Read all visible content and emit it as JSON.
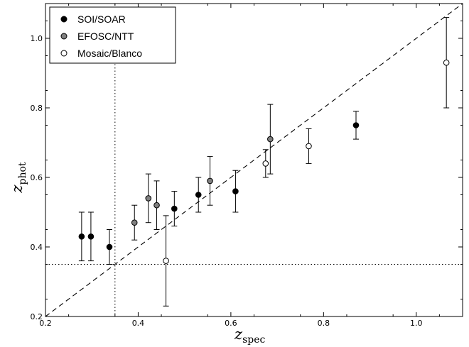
{
  "chart_data": {
    "type": "scatter",
    "title": "",
    "xlabel": {
      "main": "z",
      "sub": "spec"
    },
    "ylabel": {
      "main": "z",
      "sub": "phot"
    },
    "xlim": [
      0.2,
      1.1
    ],
    "ylim": [
      0.2,
      1.1
    ],
    "xticks": [
      {
        "v": 0.2,
        "label": "0.2"
      },
      {
        "v": 0.4,
        "label": "0.4"
      },
      {
        "v": 0.6,
        "label": "0.6"
      },
      {
        "v": 0.8,
        "label": "0.8"
      },
      {
        "v": 1.0,
        "label": "1.0"
      }
    ],
    "yticks": [
      {
        "v": 0.2,
        "label": "0.2"
      },
      {
        "v": 0.4,
        "label": "0.4"
      },
      {
        "v": 0.6,
        "label": "0.6"
      },
      {
        "v": 0.8,
        "label": "0.8"
      },
      {
        "v": 1.0,
        "label": "1.0"
      }
    ],
    "grid": false,
    "legend_position": "top-left",
    "reference_lines": {
      "one_to_one": true,
      "vertical_x": 0.35,
      "horizontal_y": 0.35
    },
    "series": [
      {
        "name": "SOI/SOAR",
        "fill": "#000000",
        "points": [
          {
            "x": 0.278,
            "y": 0.43,
            "lo": 0.36,
            "hi": 0.5
          },
          {
            "x": 0.298,
            "y": 0.43,
            "lo": 0.36,
            "hi": 0.5
          },
          {
            "x": 0.338,
            "y": 0.4,
            "lo": 0.35,
            "hi": 0.45
          },
          {
            "x": 0.478,
            "y": 0.51,
            "lo": 0.46,
            "hi": 0.56
          },
          {
            "x": 0.53,
            "y": 0.55,
            "lo": 0.5,
            "hi": 0.6
          },
          {
            "x": 0.61,
            "y": 0.56,
            "lo": 0.5,
            "hi": 0.62
          },
          {
            "x": 0.87,
            "y": 0.75,
            "lo": 0.71,
            "hi": 0.79
          }
        ]
      },
      {
        "name": "EFOSC/NTT",
        "fill": "#808080",
        "points": [
          {
            "x": 0.392,
            "y": 0.47,
            "lo": 0.42,
            "hi": 0.52
          },
          {
            "x": 0.422,
            "y": 0.54,
            "lo": 0.47,
            "hi": 0.61
          },
          {
            "x": 0.44,
            "y": 0.52,
            "lo": 0.45,
            "hi": 0.59
          },
          {
            "x": 0.555,
            "y": 0.59,
            "lo": 0.52,
            "hi": 0.66
          },
          {
            "x": 0.685,
            "y": 0.71,
            "lo": 0.61,
            "hi": 0.81
          }
        ]
      },
      {
        "name": "Mosaic/Blanco",
        "fill": "#ffffff",
        "points": [
          {
            "x": 0.46,
            "y": 0.36,
            "lo": 0.23,
            "hi": 0.49
          },
          {
            "x": 0.675,
            "y": 0.64,
            "lo": 0.6,
            "hi": 0.68
          },
          {
            "x": 0.768,
            "y": 0.69,
            "lo": 0.64,
            "hi": 0.74
          },
          {
            "x": 1.065,
            "y": 0.93,
            "lo": 0.8,
            "hi": 1.06
          }
        ]
      }
    ]
  }
}
